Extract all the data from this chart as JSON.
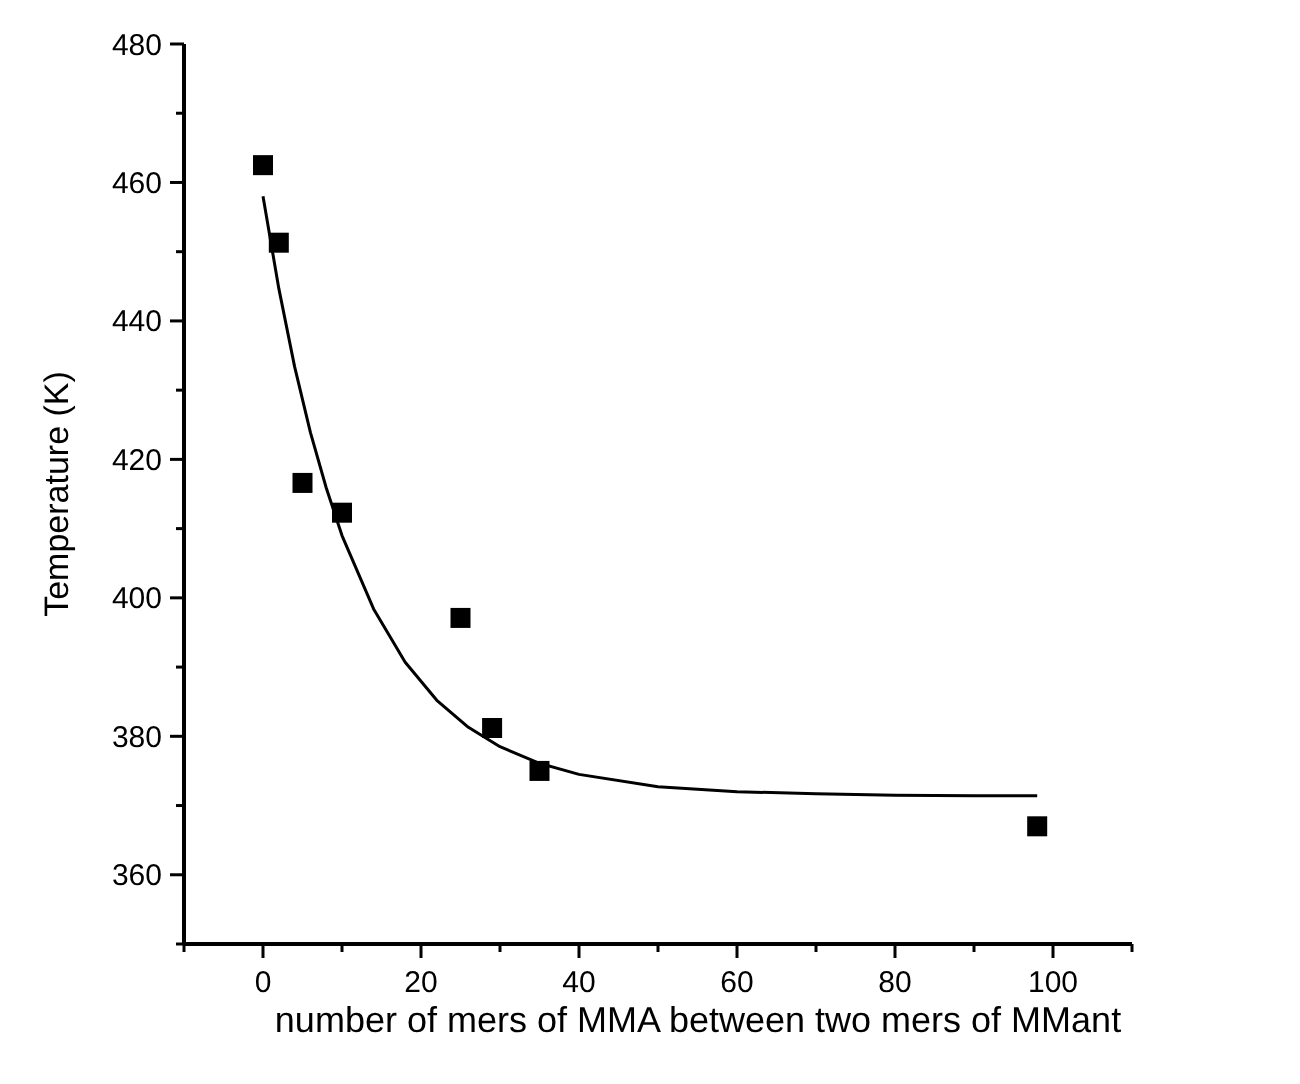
{
  "chart_data": {
    "type": "scatter",
    "xlabel": "number of mers of MMA between two mers of MMant",
    "ylabel": "Temperature (K)",
    "xlim": [
      -10,
      110
    ],
    "ylim": [
      350,
      480
    ],
    "xticks": [
      {
        "value": -10,
        "label": null
      },
      0,
      {
        "value": 10,
        "label": null
      },
      20,
      {
        "value": 30,
        "label": null
      },
      40,
      {
        "value": 50,
        "label": null
      },
      60,
      {
        "value": 70,
        "label": null
      },
      80,
      {
        "value": 90,
        "label": null
      },
      100,
      {
        "value": 110,
        "label": null
      }
    ],
    "yticks": [
      {
        "value": 350,
        "label": null
      },
      360,
      {
        "value": 370,
        "label": null
      },
      380,
      {
        "value": 390,
        "label": null
      },
      400,
      {
        "value": 410,
        "label": null
      },
      420,
      {
        "value": 430,
        "label": null
      },
      440,
      {
        "value": 450,
        "label": null
      },
      460,
      {
        "value": 470,
        "label": null
      },
      480
    ],
    "grid": false,
    "series": [
      {
        "type": "scatter",
        "color": "#000000",
        "marker": "square",
        "x": [
          0,
          2,
          5,
          10,
          25,
          29,
          35,
          98
        ],
        "values": [
          462.5,
          451.3,
          416.6,
          412.3,
          397.1,
          381.2,
          375,
          367
        ]
      },
      {
        "type": "line",
        "color": "#000000",
        "line_style": "solid",
        "x": [
          0,
          2,
          4,
          6,
          8,
          10,
          14,
          18,
          22,
          26,
          30,
          35,
          40,
          50,
          60,
          70,
          80,
          90,
          98
        ],
        "values": [
          458,
          444.7,
          433.4,
          423.9,
          415.9,
          409,
          398.4,
          390.7,
          385.2,
          381.3,
          378.5,
          376.1,
          374.5,
          372.7,
          372,
          371.7,
          371.5,
          371.4,
          371.4
        ]
      }
    ]
  }
}
